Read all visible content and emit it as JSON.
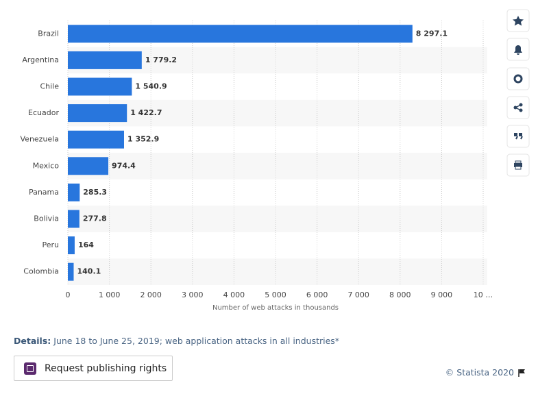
{
  "chart_data": {
    "type": "bar",
    "orientation": "horizontal",
    "categories": [
      "Brazil",
      "Argentina",
      "Chile",
      "Ecuador",
      "Venezuela",
      "Mexico",
      "Panama",
      "Bolivia",
      "Peru",
      "Colombia"
    ],
    "values": [
      8297.1,
      1779.2,
      1540.9,
      1422.7,
      1352.9,
      974.4,
      285.3,
      277.8,
      164,
      140.1
    ],
    "value_labels": [
      "8 297.1",
      "1 779.2",
      "1 540.9",
      "1 422.7",
      "1 352.9",
      "974.4",
      "285.3",
      "277.8",
      "164",
      "140.1"
    ],
    "color": "#2876dd",
    "xlim": [
      0,
      10000
    ],
    "xticks": [
      0,
      {
        "value": 1000,
        "label": "1 000"
      },
      {
        "value": 2000,
        "label": "2 000"
      },
      {
        "value": 3000,
        "label": "3 000"
      },
      {
        "value": 4000,
        "label": "4 000"
      },
      {
        "value": 5000,
        "label": "5 000"
      },
      {
        "value": 6000,
        "label": "6 000"
      },
      {
        "value": 7000,
        "label": "7 000"
      },
      {
        "value": 8000,
        "label": "8 000"
      },
      {
        "value": 9000,
        "label": "9 000"
      },
      {
        "value": 10000,
        "label": "10 …"
      }
    ],
    "xlabel": "Number of web attacks in thousands",
    "grid": true
  },
  "details": {
    "label": "Details:",
    "text": "June 18 to June 25, 2019; web application attacks in all industries*"
  },
  "button": "Request publishing rights",
  "copyright": "© Statista 2020"
}
